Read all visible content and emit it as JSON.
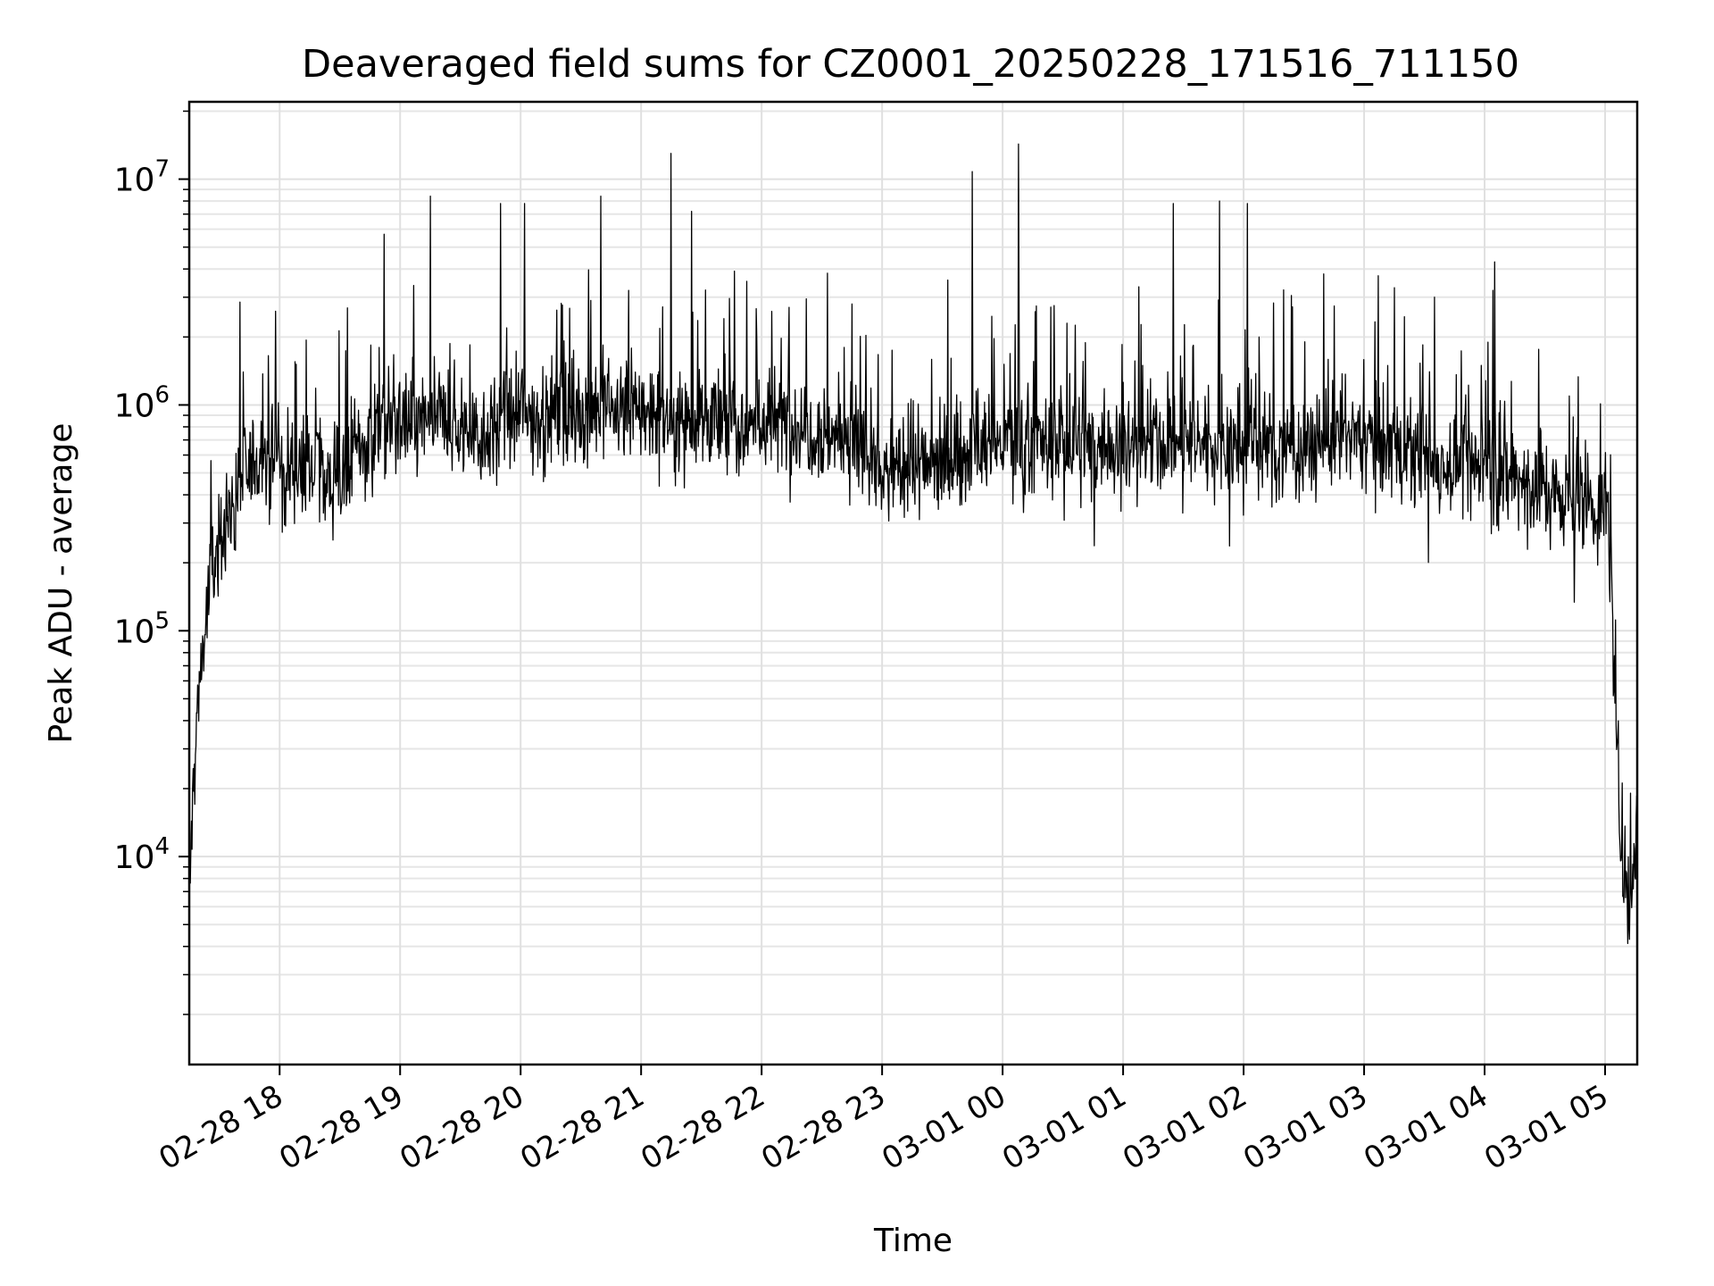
{
  "chart_data": {
    "type": "line",
    "title": "Deaveraged field sums for CZ0001_20250228_171516_711150",
    "xlabel": "Time",
    "ylabel": "Peak ADU - average",
    "yscale": "log",
    "grid": true,
    "grid_minor": true,
    "line_color": "#000000",
    "xlim": [
      "02-28 17:15",
      "03-01 05:16"
    ],
    "ylim": [
      1200.0,
      22000000.0
    ],
    "x_ticks": [
      "02-28 18",
      "02-28 19",
      "02-28 20",
      "02-28 21",
      "02-28 22",
      "02-28 23",
      "03-01 00",
      "03-01 01",
      "03-01 02",
      "03-01 03",
      "03-01 04",
      "03-01 05"
    ],
    "y_ticks": [
      {
        "base": "10",
        "exp": "4",
        "value": 10000
      },
      {
        "base": "10",
        "exp": "5",
        "value": 100000
      },
      {
        "base": "10",
        "exp": "6",
        "value": 1000000
      },
      {
        "base": "10",
        "exp": "7",
        "value": 10000000
      }
    ],
    "series": [
      {
        "baseline": {
          "x": [
            "02-28 17:15",
            "02-28 17:17",
            "02-28 17:20",
            "02-28 17:25",
            "02-28 17:30",
            "02-28 17:40",
            "02-28 17:50",
            "02-28 18:00",
            "02-28 18:30",
            "02-28 18:50",
            "02-28 19:15",
            "02-28 19:40",
            "02-28 20:00",
            "02-28 20:30",
            "02-28 20:45",
            "02-28 21:00",
            "02-28 21:30",
            "02-28 21:50",
            "02-28 22:15",
            "02-28 22:45",
            "02-28 23:00",
            "02-28 23:30",
            "03-01 00:00",
            "03-01 00:30",
            "03-01 01:00",
            "03-01 01:30",
            "03-01 02:00",
            "03-01 02:30",
            "03-01 02:45",
            "03-01 03:00",
            "03-01 03:30",
            "03-01 04:00",
            "03-01 04:30",
            "03-01 04:55",
            "03-01 05:01",
            "03-01 05:03",
            "03-01 05:05",
            "03-01 05:08",
            "03-01 05:12",
            "03-01 05:16"
          ],
          "y": [
            6000,
            20000,
            60000,
            150000,
            250000,
            450000,
            600000,
            550000,
            500000,
            800000,
            850000,
            750000,
            900000,
            950000,
            1000000,
            900000,
            850000,
            800000,
            850000,
            700000,
            500000,
            550000,
            700000,
            650000,
            650000,
            700000,
            650000,
            650000,
            700000,
            750000,
            550000,
            550000,
            420000,
            350000,
            350000,
            200000,
            40000,
            12000,
            6000,
            15000
          ]
        },
        "spikes": {
          "x": [
            "02-28 17:42",
            "02-28 17:58",
            "02-28 18:52",
            "02-28 19:15",
            "02-28 19:50",
            "02-28 20:02",
            "02-28 20:40",
            "02-28 21:15",
            "02-28 21:25",
            "02-28 22:45",
            "02-28 23:45",
            "03-01 00:08",
            "03-01 01:25",
            "03-01 01:48",
            "03-01 02:02",
            "03-01 02:40",
            "03-01 03:35",
            "03-01 04:05"
          ],
          "y": [
            1400000,
            2600000,
            5700000,
            8400000,
            7800000,
            7800000,
            8400000,
            13000000,
            7200000,
            2800000,
            10800000,
            14300000,
            7800000,
            8000000,
            7800000,
            3800000,
            3000000,
            4300000
          ]
        }
      }
    ]
  }
}
